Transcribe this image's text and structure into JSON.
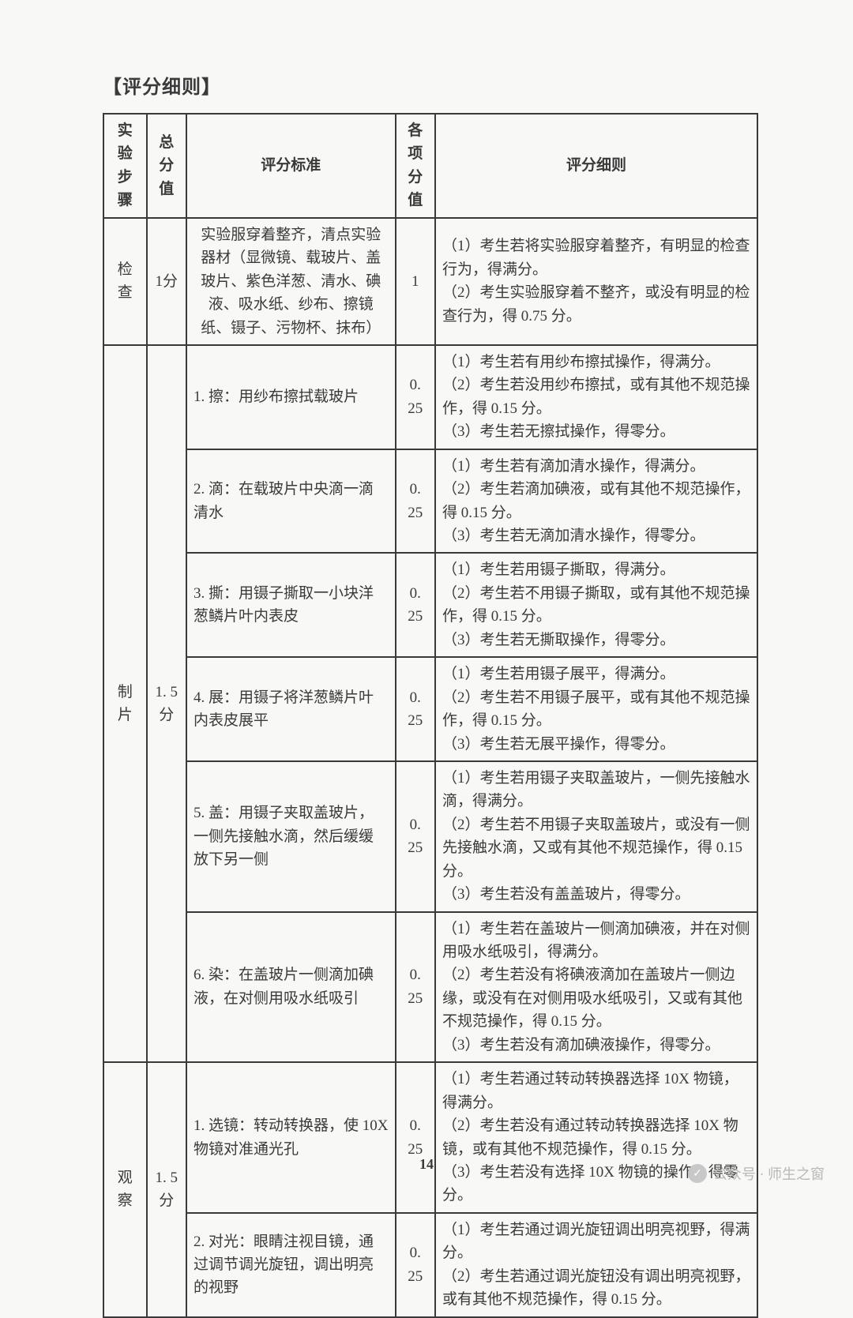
{
  "title": "【评分细则】",
  "pageNumber": "14",
  "watermark": {
    "icon": "✓",
    "text": "公众号 · 师生之窗"
  },
  "headers": {
    "step": "实验\n步骤",
    "total": "总分\n值",
    "standard": "评分标准",
    "sub": "各项\n分值",
    "rule": "评分细则"
  },
  "rows": [
    {
      "step": "检查",
      "total": "1分",
      "standard": "实验服穿着整齐，清点实验器材（显微镜、载玻片、盖玻片、紫色洋葱、清水、碘液、吸水纸、纱布、擦镜纸、镊子、污物杯、抹布）",
      "sub": "1",
      "rule": "（1）考生若将实验服穿着整齐，有明显的检查行为，得满分。\n（2）考生实验服穿着不整齐，或没有明显的检查行为，得 0.75 分。",
      "stdAlign": "center"
    },
    {
      "step": "制片",
      "total": "1. 5\n分",
      "standard": "1. 擦：用纱布擦拭载玻片",
      "sub": "0. 25",
      "rule": "（1）考生若有用纱布擦拭操作，得满分。\n（2）考生若没用纱布擦拭，或有其他不规范操作，得 0.15 分。\n（3）考生若无擦拭操作，得零分。",
      "rowspanStep": 6,
      "rowspanTotal": 6
    },
    {
      "standard": "2. 滴：在载玻片中央滴一滴清水",
      "sub": "0. 25",
      "rule": "（1）考生若有滴加清水操作，得满分。\n（2）考生若滴加碘液，或有其他不规范操作，得 0.15 分。\n（3）考生若无滴加清水操作，得零分。"
    },
    {
      "standard": "3. 撕：用镊子撕取一小块洋葱鳞片叶内表皮",
      "sub": "0. 25",
      "rule": "（1）考生若用镊子撕取，得满分。\n（2）考生若不用镊子撕取，或有其他不规范操作，得 0.15 分。\n（3）考生若无撕取操作，得零分。"
    },
    {
      "standard": "4. 展：用镊子将洋葱鳞片叶内表皮展平",
      "sub": "0. 25",
      "rule": "（1）考生若用镊子展平，得满分。\n（2）考生若不用镊子展平，或有其他不规范操作，得 0.15 分。\n（3）考生若无展平操作，得零分。"
    },
    {
      "standard": "5. 盖：用镊子夹取盖玻片，一侧先接触水滴，然后缓缓放下另一侧",
      "sub": "0. 25",
      "rule": "（1）考生若用镊子夹取盖玻片，一侧先接触水滴，得满分。\n（2）考生若不用镊子夹取盖玻片，或没有一侧先接触水滴，又或有其他不规范操作，得 0.15 分。\n（3）考生若没有盖盖玻片，得零分。"
    },
    {
      "standard": "6. 染：在盖玻片一侧滴加碘液，在对侧用吸水纸吸引",
      "sub": "0. 25",
      "rule": "（1）考生若在盖玻片一侧滴加碘液，并在对侧用吸水纸吸引，得满分。\n（2）考生若没有将碘液滴加在盖玻片一侧边缘，或没有在对侧用吸水纸吸引，又或有其他不规范操作，得 0.15 分。\n（3）考生若没有滴加碘液操作，得零分。"
    },
    {
      "step": "观察",
      "total": "1. 5\n分",
      "standard": "1. 选镜：转动转换器，使 10X 物镜对准通光孔",
      "sub": "0. 25",
      "rule": "（1）考生若通过转动转换器选择 10X 物镜，得满分。\n（2）考生若没有通过转动转换器选择 10X 物镜，或有其他不规范操作，得 0.15 分。\n（3）考生若没有选择 10X 物镜的操作，得零分。",
      "rowspanStep": 2,
      "rowspanTotal": 2
    },
    {
      "standard": "2. 对光：眼睛注视目镜，通过调节调光旋钮，调出明亮的视野",
      "sub": "0. 25",
      "rule": "（1）考生若通过调光旋钮调出明亮视野，得满分。\n（2）考生若通过调光旋钮没有调出明亮视野，或有其他不规范操作，得 0.15 分。"
    }
  ]
}
